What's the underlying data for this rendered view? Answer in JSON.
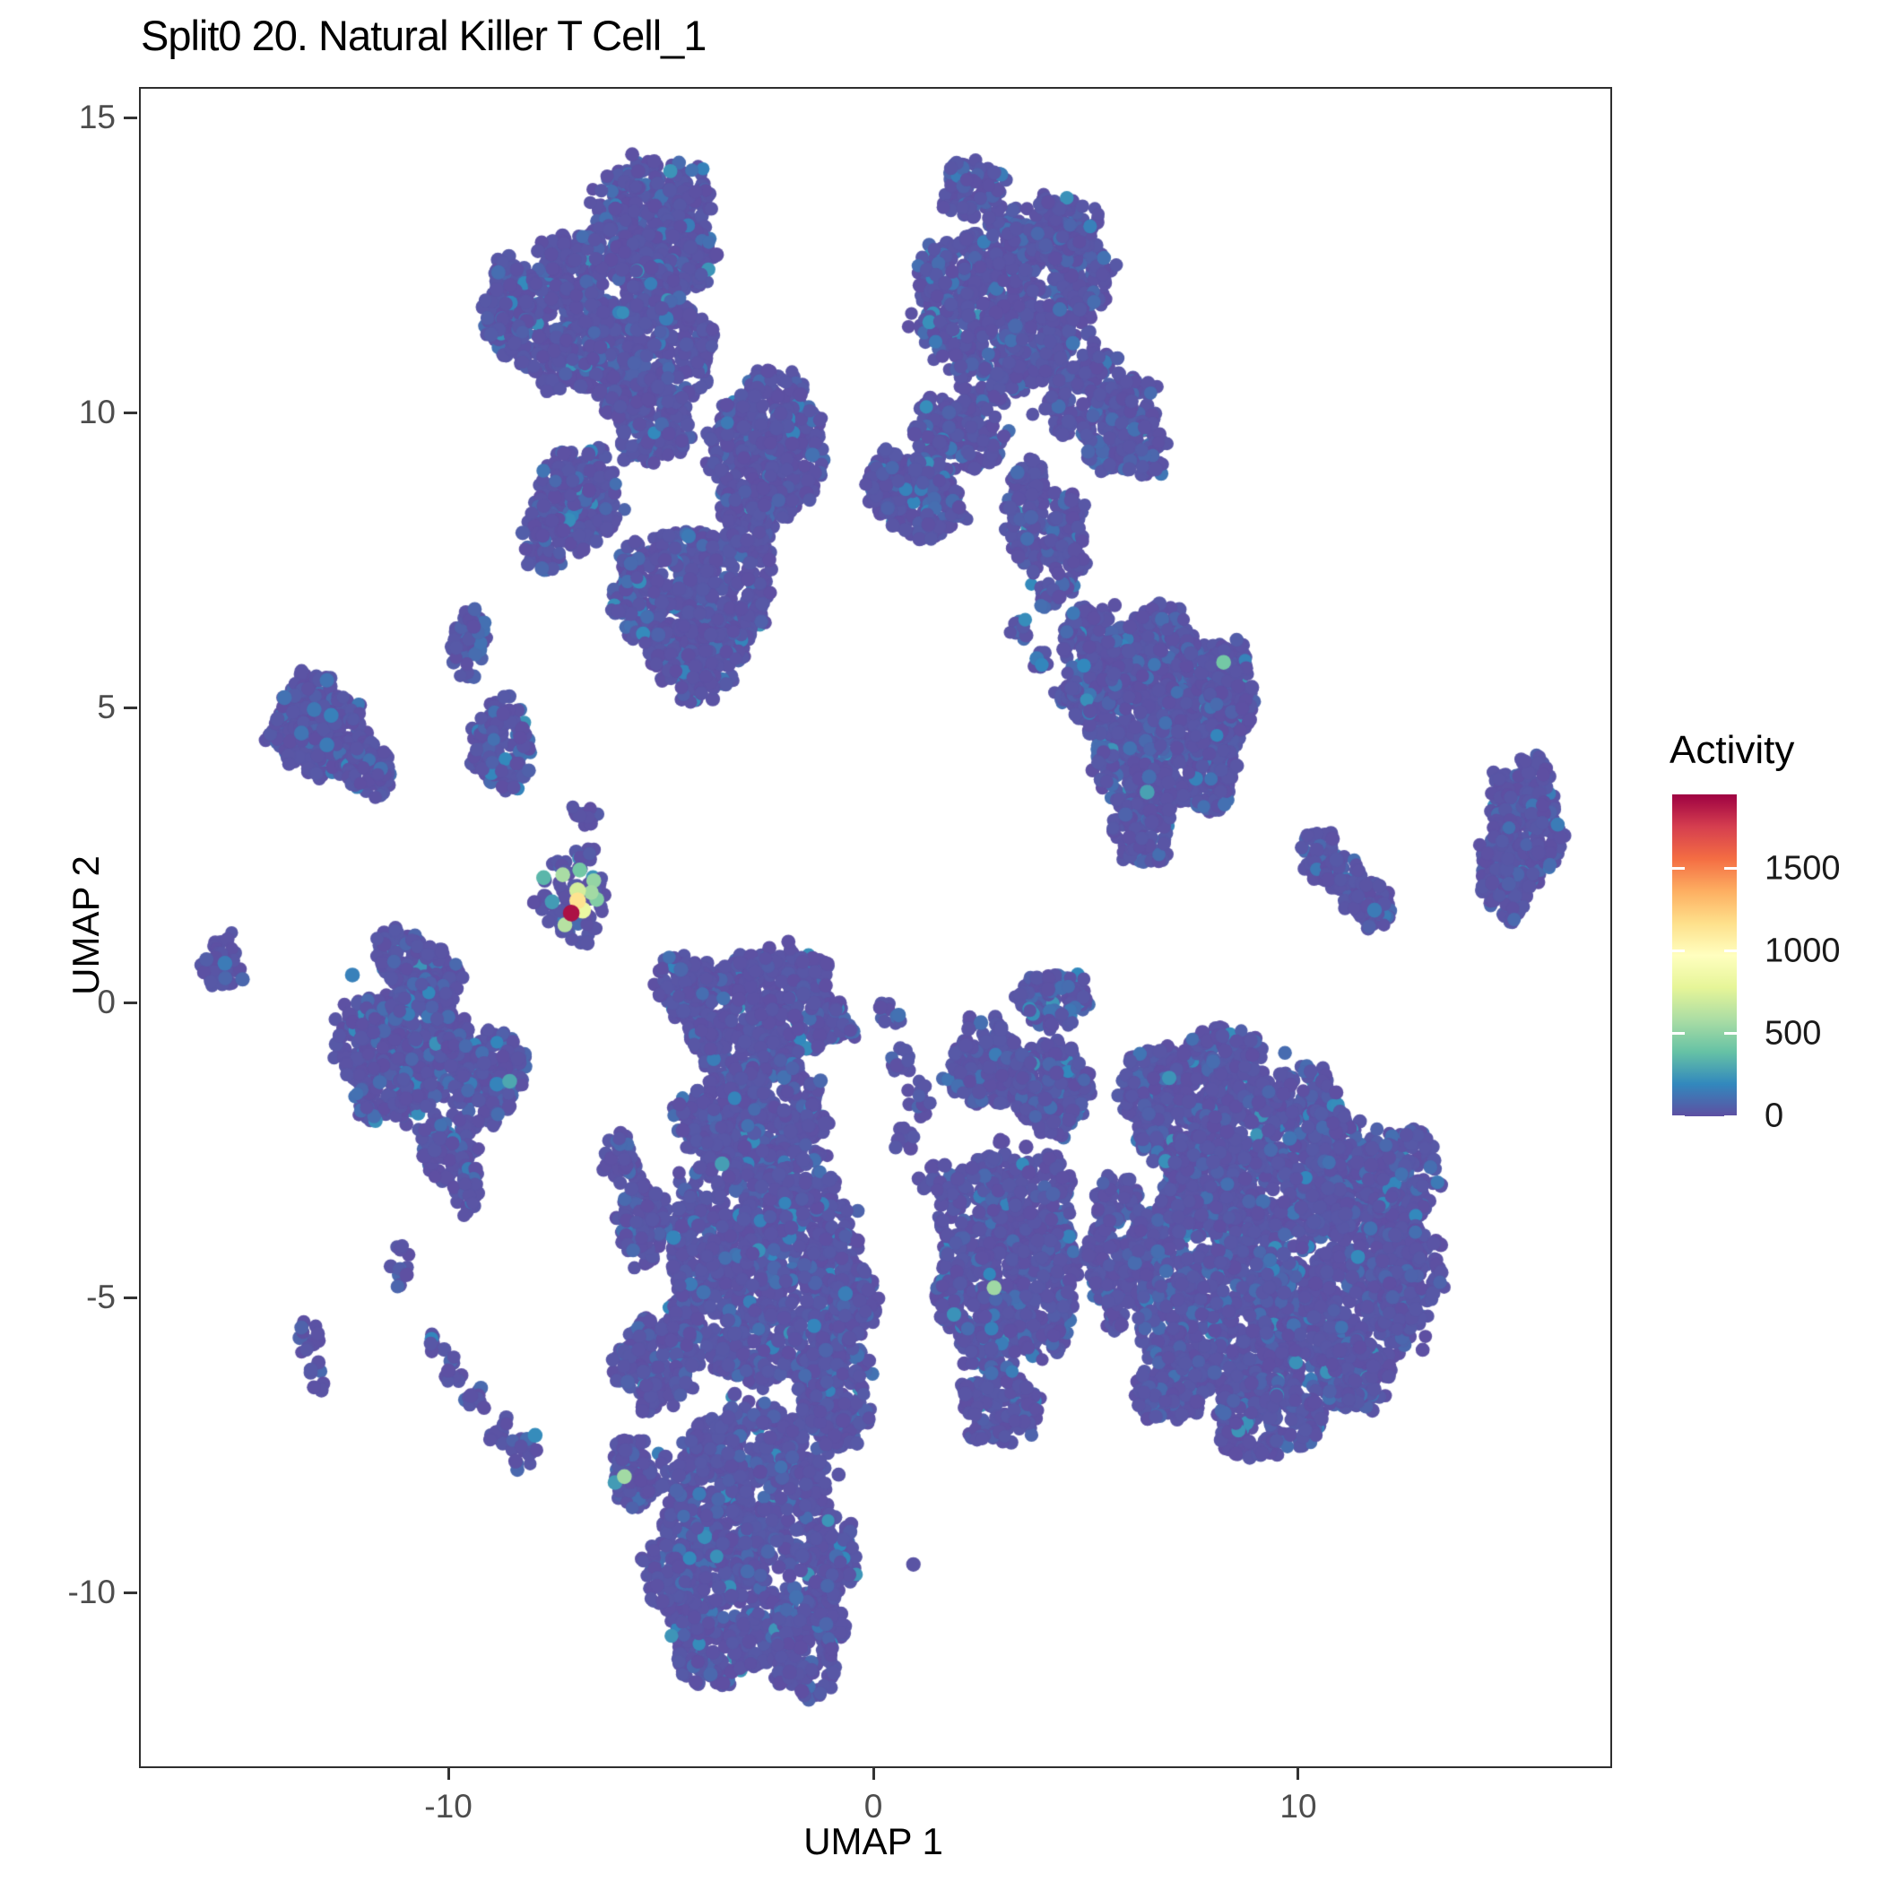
{
  "title": "Split0 20. Natural Killer T Cell_1",
  "axes": {
    "x": {
      "label": "UMAP 1",
      "ticks": [
        {
          "value": -10,
          "label": "-10"
        },
        {
          "value": 0,
          "label": "0"
        },
        {
          "value": 10,
          "label": "10"
        }
      ]
    },
    "y": {
      "label": "UMAP 2",
      "ticks": [
        {
          "value": 15,
          "label": "15"
        },
        {
          "value": 10,
          "label": "10"
        },
        {
          "value": 5,
          "label": "5"
        },
        {
          "value": 0,
          "label": "0"
        },
        {
          "value": -5,
          "label": "-5"
        },
        {
          "value": -10,
          "label": "-10"
        }
      ]
    }
  },
  "legend": {
    "title": "Activity",
    "domain": [
      0,
      1950
    ],
    "ticks": [
      {
        "value": 1500,
        "label": "1500"
      },
      {
        "value": 1000,
        "label": "1000"
      },
      {
        "value": 500,
        "label": "500"
      },
      {
        "value": 0,
        "label": "0"
      }
    ]
  },
  "chart_data": {
    "type": "scatter",
    "title": "Split0 20. Natural Killer T Cell_1",
    "xlabel": "UMAP 1",
    "ylabel": "UMAP 2",
    "xlim": [
      -17.28,
      17.3
    ],
    "ylim": [
      -12.91,
      15.52
    ],
    "x_ticks": [
      -10,
      0,
      10
    ],
    "y_ticks": [
      15,
      10,
      5,
      0,
      -5,
      -10
    ],
    "grid": false,
    "legend_position": "right",
    "point_radius_px": 7.5,
    "color_scale": {
      "name": "spectral-reversed",
      "variable": "Activity",
      "domain": [
        0,
        1950
      ],
      "stops": [
        [
          0.0,
          "#5e4fa2"
        ],
        [
          0.1,
          "#3288bd"
        ],
        [
          0.2,
          "#66c2a5"
        ],
        [
          0.3,
          "#abdda4"
        ],
        [
          0.4,
          "#e6f598"
        ],
        [
          0.5,
          "#ffffbf"
        ],
        [
          0.6,
          "#fee08b"
        ],
        [
          0.7,
          "#fdae61"
        ],
        [
          0.8,
          "#f46d43"
        ],
        [
          0.9,
          "#d53e4f"
        ],
        [
          1.0,
          "#9e0142"
        ]
      ]
    },
    "clusters_format": [
      "center_x",
      "center_y",
      "radius_x",
      "radius_y",
      "n_points",
      "rotation_deg"
    ],
    "clusters": [
      [
        -5.2,
        13.6,
        1.45,
        0.75,
        260,
        0
      ],
      [
        -4.7,
        12.7,
        0.95,
        0.6,
        140,
        0
      ],
      [
        -6.4,
        11.6,
        2.55,
        1.4,
        850,
        -8
      ],
      [
        -8.6,
        11.9,
        0.6,
        0.75,
        90,
        0
      ],
      [
        -5.3,
        9.9,
        1.0,
        0.75,
        170,
        0
      ],
      [
        -7.0,
        8.6,
        1.05,
        0.85,
        200,
        0
      ],
      [
        -7.8,
        7.9,
        0.5,
        0.6,
        60,
        0
      ],
      [
        -4.3,
        7.0,
        1.95,
        1.05,
        500,
        0
      ],
      [
        -4.25,
        6.0,
        1.25,
        0.6,
        160,
        0
      ],
      [
        -4.3,
        5.5,
        0.6,
        0.45,
        60,
        0
      ],
      [
        -2.5,
        9.5,
        1.4,
        1.15,
        380,
        10
      ],
      [
        -2.9,
        8.3,
        0.85,
        0.5,
        90,
        0
      ],
      [
        -1.35,
        9.9,
        0.05,
        0.05,
        1,
        0
      ],
      [
        3.2,
        11.9,
        2.25,
        1.5,
        800,
        12
      ],
      [
        2.3,
        13.8,
        0.8,
        0.5,
        90,
        0
      ],
      [
        4.4,
        13.2,
        0.85,
        0.55,
        90,
        0
      ],
      [
        1.9,
        9.6,
        1.1,
        0.7,
        170,
        0
      ],
      [
        1.0,
        8.6,
        1.1,
        0.7,
        170,
        -15
      ],
      [
        0.3,
        8.9,
        0.45,
        0.55,
        50,
        0
      ],
      [
        5.3,
        10.1,
        1.25,
        0.95,
        260,
        -10
      ],
      [
        6.3,
        9.4,
        0.6,
        0.5,
        60,
        0
      ],
      [
        3.6,
        8.3,
        0.5,
        0.95,
        110,
        0
      ],
      [
        4.5,
        7.8,
        0.45,
        0.85,
        90,
        0
      ],
      [
        4.1,
        6.9,
        0.3,
        0.25,
        14,
        0
      ],
      [
        3.4,
        6.4,
        0.25,
        0.22,
        10,
        0
      ],
      [
        4.7,
        6.3,
        0.28,
        0.25,
        12,
        0
      ],
      [
        3.9,
        5.8,
        0.22,
        0.2,
        8,
        0
      ],
      [
        4.4,
        5.3,
        0.25,
        0.22,
        10,
        0
      ],
      [
        5.9,
        5.7,
        0.18,
        0.16,
        4,
        0
      ],
      [
        5.3,
        6.6,
        0.2,
        0.18,
        6,
        0
      ],
      [
        6.8,
        4.9,
        1.95,
        1.75,
        950,
        -5
      ],
      [
        5.2,
        5.9,
        0.8,
        0.9,
        160,
        0
      ],
      [
        6.3,
        2.9,
        0.75,
        0.55,
        90,
        0
      ],
      [
        8.3,
        5.3,
        0.6,
        0.9,
        120,
        0
      ],
      [
        10.5,
        2.5,
        0.5,
        0.4,
        55,
        -30
      ],
      [
        11.1,
        2.1,
        0.55,
        0.4,
        65,
        -30
      ],
      [
        11.7,
        1.7,
        0.45,
        0.4,
        55,
        -30
      ],
      [
        15.2,
        3.5,
        0.8,
        0.65,
        150,
        20
      ],
      [
        14.9,
        2.3,
        0.7,
        0.8,
        170,
        0
      ],
      [
        15.8,
        2.9,
        0.45,
        0.6,
        70,
        0
      ],
      [
        -13.1,
        4.7,
        1.1,
        0.85,
        280,
        -12
      ],
      [
        -11.9,
        4.0,
        0.55,
        0.5,
        70,
        0
      ],
      [
        -15.3,
        0.7,
        0.5,
        0.5,
        45,
        0
      ],
      [
        -9.55,
        6.1,
        0.45,
        0.6,
        55,
        0
      ],
      [
        -8.75,
        4.4,
        0.7,
        0.8,
        130,
        15
      ],
      [
        -6.9,
        3.2,
        0.4,
        0.16,
        14,
        0
      ],
      [
        -7.1,
        1.85,
        0.85,
        0.8,
        70,
        0
      ],
      [
        -10.8,
        0.6,
        1.05,
        0.6,
        170,
        -20
      ],
      [
        -11.0,
        -0.8,
        1.65,
        1.15,
        520,
        5
      ],
      [
        -9.2,
        -1.2,
        0.9,
        0.85,
        230,
        0
      ],
      [
        -10.1,
        -2.4,
        0.65,
        0.55,
        100,
        0
      ],
      [
        -9.6,
        -3.1,
        0.3,
        0.45,
        30,
        0
      ],
      [
        -11.2,
        -4.4,
        0.28,
        0.35,
        12,
        0
      ],
      [
        -13.3,
        -5.65,
        0.25,
        0.32,
        12,
        0
      ],
      [
        -13.1,
        -6.3,
        0.2,
        0.26,
        8,
        0
      ],
      [
        -10.3,
        -5.7,
        0.22,
        0.22,
        7,
        0
      ],
      [
        -9.9,
        -6.2,
        0.24,
        0.24,
        9,
        0
      ],
      [
        -9.4,
        -6.75,
        0.28,
        0.26,
        11,
        0
      ],
      [
        -8.85,
        -7.2,
        0.3,
        0.28,
        13,
        0
      ],
      [
        -8.3,
        -7.6,
        0.34,
        0.3,
        16,
        0
      ],
      [
        -2.7,
        -0.1,
        2.05,
        1.05,
        500,
        3
      ],
      [
        -4.6,
        0.4,
        0.7,
        0.5,
        80,
        0
      ],
      [
        -2.8,
        -1.9,
        1.75,
        0.95,
        430,
        0
      ],
      [
        -2.7,
        -4.5,
        2.35,
        2.0,
        1000,
        0
      ],
      [
        -5.5,
        -3.7,
        0.55,
        0.75,
        90,
        0
      ],
      [
        -6.0,
        -2.6,
        0.4,
        0.4,
        40,
        0
      ],
      [
        -5.2,
        -6.1,
        0.95,
        0.75,
        170,
        0
      ],
      [
        -5.6,
        -7.9,
        0.6,
        0.6,
        85,
        0
      ],
      [
        -3.0,
        -8.2,
        1.95,
        1.45,
        600,
        0
      ],
      [
        -3.6,
        -10.4,
        1.35,
        1.15,
        320,
        0
      ],
      [
        -4.9,
        -9.6,
        0.6,
        0.6,
        80,
        0
      ],
      [
        -1.6,
        -10.8,
        0.85,
        0.95,
        200,
        0
      ],
      [
        -1.1,
        -9.4,
        0.7,
        0.6,
        110,
        0
      ],
      [
        -0.9,
        -6.6,
        0.85,
        1.05,
        220,
        0
      ],
      [
        -0.5,
        -5.0,
        0.5,
        0.7,
        90,
        0
      ],
      [
        0.6,
        -0.9,
        0.3,
        0.3,
        12,
        0
      ],
      [
        1.0,
        -1.6,
        0.3,
        0.3,
        12,
        0
      ],
      [
        0.7,
        -2.3,
        0.26,
        0.26,
        9,
        0
      ],
      [
        1.2,
        -2.9,
        0.26,
        0.26,
        9,
        0
      ],
      [
        0.3,
        -0.2,
        0.3,
        0.25,
        10,
        0
      ],
      [
        4.2,
        0.1,
        0.85,
        0.5,
        100,
        0
      ],
      [
        2.6,
        -1.0,
        0.85,
        0.75,
        170,
        0
      ],
      [
        4.1,
        -1.4,
        0.95,
        0.8,
        220,
        0
      ],
      [
        3.1,
        -4.3,
        1.75,
        1.9,
        800,
        0
      ],
      [
        3.0,
        -6.8,
        0.95,
        0.65,
        130,
        0
      ],
      [
        5.7,
        -4.2,
        0.7,
        1.3,
        240,
        0
      ],
      [
        7.0,
        -1.6,
        1.25,
        0.95,
        320,
        0
      ],
      [
        8.2,
        -0.8,
        0.9,
        0.45,
        90,
        0
      ],
      [
        9.4,
        -4.0,
        3.25,
        2.75,
        2200,
        0
      ],
      [
        12.5,
        -2.9,
        0.85,
        0.8,
        160,
        0
      ],
      [
        12.6,
        -4.6,
        0.75,
        0.9,
        160,
        0
      ],
      [
        9.2,
        -7.0,
        1.25,
        0.7,
        200,
        0
      ],
      [
        6.9,
        -6.5,
        0.85,
        0.6,
        130,
        0
      ],
      [
        11.3,
        -6.3,
        0.8,
        0.6,
        120,
        0
      ],
      [
        0.95,
        -9.5,
        0.05,
        0.05,
        1,
        0
      ]
    ],
    "highlights_format": [
      "x",
      "y",
      "activity"
    ],
    "highlights": [
      [
        -7.8,
        2.15,
        350
      ],
      [
        -7.6,
        1.74,
        260
      ],
      [
        -7.35,
        2.2,
        580
      ],
      [
        -6.95,
        2.28,
        430
      ],
      [
        -6.62,
        2.1,
        520
      ],
      [
        -6.55,
        1.78,
        470
      ],
      [
        -6.68,
        1.9,
        560
      ],
      [
        -7.3,
        1.35,
        620
      ],
      [
        -7.0,
        1.93,
        720
      ],
      [
        -6.88,
        1.6,
        830
      ],
      [
        -7.0,
        1.76,
        1150
      ],
      [
        -7.15,
        1.55,
        1900
      ],
      [
        8.2,
        5.8,
        430
      ],
      [
        6.4,
        3.6,
        280
      ],
      [
        -8.6,
        -1.3,
        300
      ],
      [
        -8.9,
        -1.35,
        180
      ],
      [
        -12.3,
        0.5,
        170
      ],
      [
        -15.3,
        0.7,
        150
      ],
      [
        2.8,
        -4.8,
        550
      ],
      [
        -5.9,
        -8.0,
        560
      ],
      [
        -6.12,
        -8.1,
        260
      ],
      [
        11.75,
        1.6,
        150
      ],
      [
        -3.6,
        -2.7,
        270
      ],
      [
        -0.7,
        -4.9,
        160
      ],
      [
        -8.0,
        -7.3,
        210
      ],
      [
        -13.9,
        5.2,
        120
      ],
      [
        -13.2,
        5.0,
        140
      ],
      [
        -12.8,
        4.9,
        170
      ],
      [
        -13.5,
        4.6,
        130
      ],
      [
        -12.9,
        4.4,
        150
      ],
      [
        3.3,
        11.5,
        90
      ]
    ]
  }
}
